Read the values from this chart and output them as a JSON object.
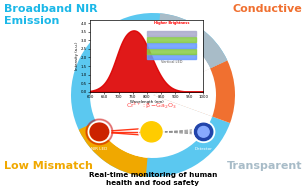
{
  "labels": {
    "top_left": "Broadband NIR\nEmission",
    "top_right": "Conductive",
    "bottom_left": "Low Mismatch",
    "bottom_right": "Transparent"
  },
  "label_colors": {
    "top_left": "#1CB8E8",
    "top_right": "#F07030",
    "bottom_left": "#F0A800",
    "bottom_right": "#A8BCC8"
  },
  "ring_segments": [
    {
      "theta1": 25,
      "theta2": 340,
      "color": "#5BC8F0"
    },
    {
      "theta1": 340,
      "theta2": 385,
      "color": "#F07030"
    },
    {
      "theta1": 385,
      "theta2": 445,
      "color": "#A8BCC8"
    },
    {
      "theta1": 205,
      "theta2": 265,
      "color": "#F0A800"
    }
  ],
  "bg_color": "#FFFFFF",
  "fig_width": 3.06,
  "fig_height": 1.89,
  "dpi": 100
}
